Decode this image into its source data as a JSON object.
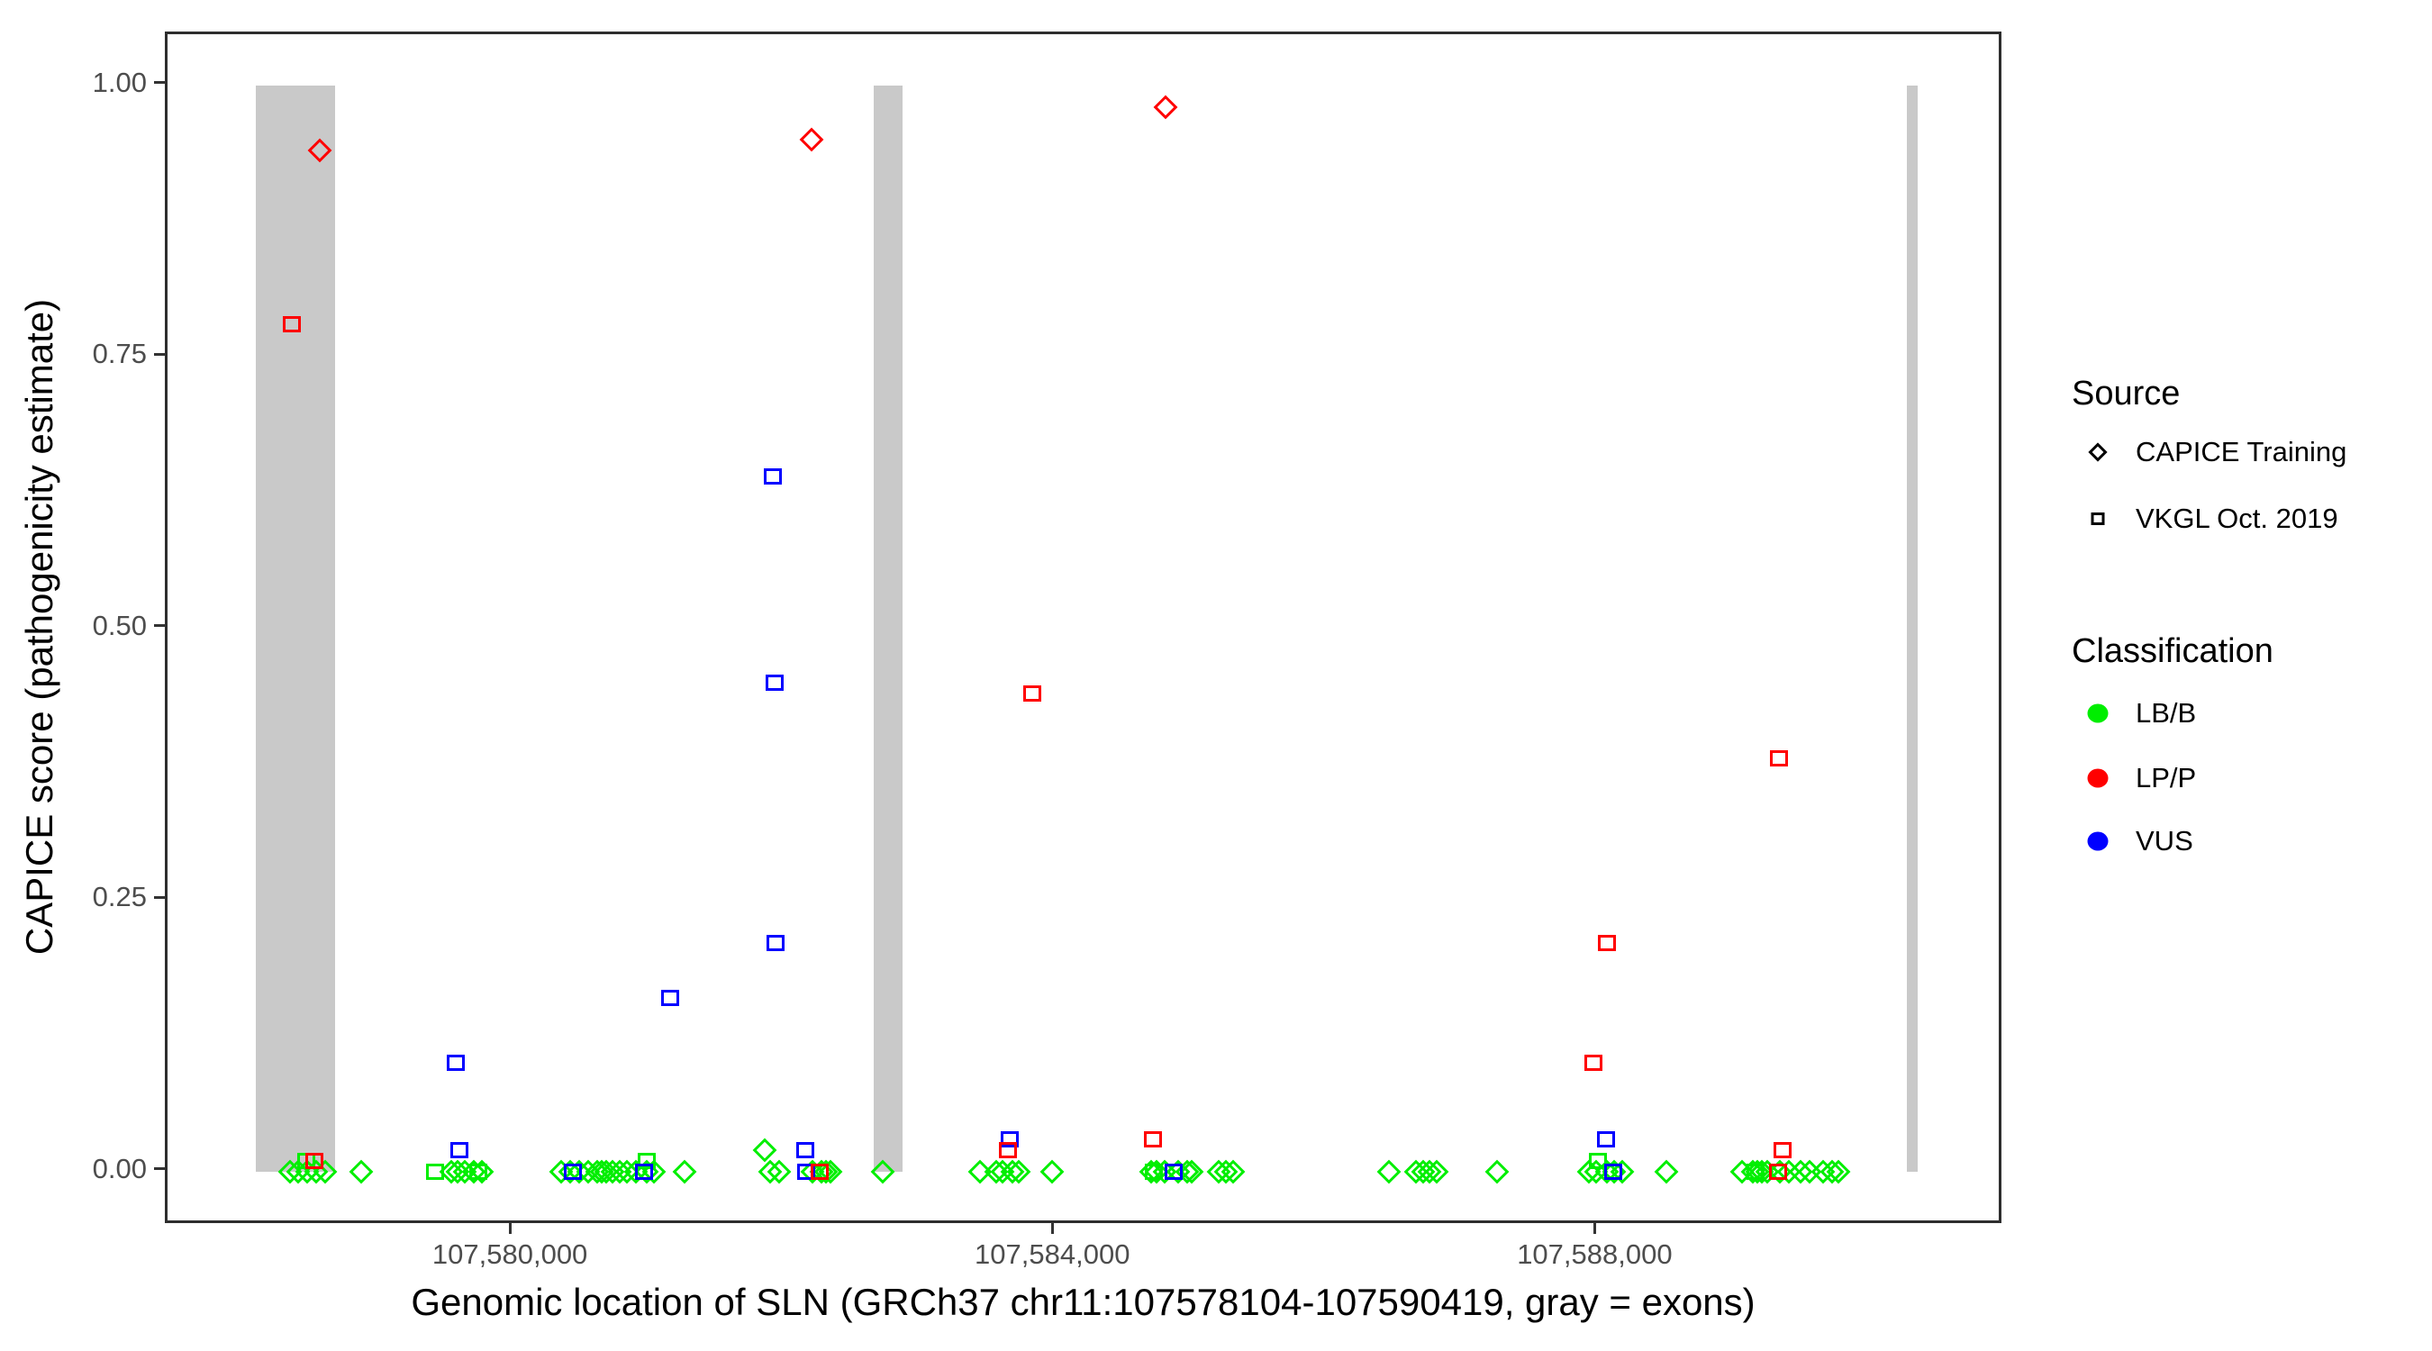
{
  "colors": {
    "lb_b": "#00ee00",
    "lp_p": "#ff0000",
    "vus": "#0000ff",
    "exon_gray": "#c9c9c9",
    "axis_text": "#4d4d4d",
    "panel_border": "#2e2e2e"
  },
  "axes": {
    "x": {
      "title": "Genomic location of SLN (GRCh37 chr11:107578104-107590419, gray = exons)"
    },
    "y": {
      "title": "CAPICE score (pathogenicity estimate)"
    }
  },
  "legend": {
    "source": {
      "title": "Source",
      "items": [
        {
          "label": "CAPICE Training",
          "shape": "diamond"
        },
        {
          "label": "VKGL Oct. 2019",
          "shape": "square"
        }
      ]
    },
    "classification": {
      "title": "Classification",
      "items": [
        {
          "label": "LB/B",
          "color": "#00ee00"
        },
        {
          "label": "LP/P",
          "color": "#ff0000"
        },
        {
          "label": "VUS",
          "color": "#0000ff"
        }
      ]
    }
  },
  "chart_data": {
    "type": "scatter",
    "title": "",
    "xlabel": "Genomic location of SLN (GRCh37 chr11:107578104-107590419, gray = exons)",
    "ylabel": "CAPICE score (pathogenicity estimate)",
    "x_range": [
      107577455,
      107591000
    ],
    "y_range": [
      -0.05,
      1.047
    ],
    "grid": "off",
    "legend_position": "right",
    "x_ticks": [
      {
        "value": 107580000,
        "label": "107,580,000"
      },
      {
        "value": 107584000,
        "label": "107,584,000"
      },
      {
        "value": 107588000,
        "label": "107,588,000"
      }
    ],
    "y_ticks": [
      {
        "value": 0.0,
        "label": "0.00"
      },
      {
        "value": 0.25,
        "label": "0.25"
      },
      {
        "value": 0.5,
        "label": "0.50"
      },
      {
        "value": 0.75,
        "label": "0.75"
      },
      {
        "value": 1.0,
        "label": "1.00"
      }
    ],
    "exons": [
      {
        "start": 107578104,
        "end": 107578690
      },
      {
        "start": 107582660,
        "end": 107582875
      },
      {
        "start": 107590280,
        "end": 107590365
      }
    ],
    "series": [
      {
        "name": "CAPICE Training",
        "classification": "LB/B",
        "shape": "diamond",
        "color": "#00ee00",
        "points": [
          [
            107578358,
            0
          ],
          [
            107578417,
            0
          ],
          [
            107578483,
            0
          ],
          [
            107578550,
            0
          ],
          [
            107578616,
            0
          ],
          [
            107578881,
            0
          ],
          [
            107579550,
            0
          ],
          [
            107579596,
            0
          ],
          [
            107579649,
            0
          ],
          [
            107579715,
            0
          ],
          [
            107579775,
            0
          ],
          [
            107580358,
            0
          ],
          [
            107580424,
            0
          ],
          [
            107580490,
            0
          ],
          [
            107580556,
            0
          ],
          [
            107580623,
            0
          ],
          [
            107580656,
            0
          ],
          [
            107580689,
            0
          ],
          [
            107580735,
            0
          ],
          [
            107580788,
            0
          ],
          [
            107580841,
            0
          ],
          [
            107580907,
            0
          ],
          [
            107580987,
            0
          ],
          [
            107581040,
            0
          ],
          [
            107581265,
            0
          ],
          [
            107581861,
            0.02
          ],
          [
            107581901,
            0
          ],
          [
            107581967,
            0
          ],
          [
            107582212,
            0
          ],
          [
            107582278,
            0
          ],
          [
            107582311,
            0
          ],
          [
            107582344,
            0
          ],
          [
            107582728,
            0
          ],
          [
            107583450,
            0
          ],
          [
            107583569,
            0
          ],
          [
            107583616,
            0
          ],
          [
            107583689,
            0
          ],
          [
            107583735,
            0
          ],
          [
            107583980,
            0
          ],
          [
            107584708,
            0
          ],
          [
            107584748,
            0
          ],
          [
            107584808,
            0
          ],
          [
            107584907,
            0
          ],
          [
            107584973,
            0
          ],
          [
            107585006,
            0
          ],
          [
            107585205,
            0
          ],
          [
            107585258,
            0
          ],
          [
            107585311,
            0
          ],
          [
            107586463,
            0
          ],
          [
            107586662,
            0
          ],
          [
            107586715,
            0
          ],
          [
            107586761,
            0
          ],
          [
            107586814,
            0
          ],
          [
            107587258,
            0
          ],
          [
            107587940,
            0
          ],
          [
            107587993,
            0
          ],
          [
            107588072,
            0
          ],
          [
            107588125,
            0
          ],
          [
            107588185,
            0
          ],
          [
            107588510,
            0
          ],
          [
            107589066,
            0
          ],
          [
            107589145,
            0
          ],
          [
            107589178,
            0
          ],
          [
            107589212,
            0
          ],
          [
            107589251,
            0
          ],
          [
            107589344,
            0
          ],
          [
            107589410,
            0
          ],
          [
            107589496,
            0
          ],
          [
            107589563,
            0
          ],
          [
            107589662,
            0
          ],
          [
            107589728,
            0
          ],
          [
            107589781,
            0
          ]
        ]
      },
      {
        "name": "CAPICE Training",
        "classification": "LP/P",
        "shape": "diamond",
        "color": "#ff0000",
        "points": [
          [
            107578580,
            0.94
          ],
          [
            107582205,
            0.95
          ],
          [
            107584814,
            0.98
          ]
        ]
      },
      {
        "name": "VKGL Oct. 2019",
        "classification": "LB/B",
        "shape": "square",
        "color": "#00ee00",
        "points": [
          [
            107578477,
            0.01
          ],
          [
            107579430,
            0
          ],
          [
            107579748,
            0
          ],
          [
            107580987,
            0.01
          ],
          [
            107584728,
            0
          ],
          [
            107588006,
            0.01
          ],
          [
            107589165,
            0
          ]
        ]
      },
      {
        "name": "VKGL Oct. 2019",
        "classification": "VUS",
        "shape": "square",
        "color": "#0000ff",
        "points": [
          [
            107579583,
            0.1
          ],
          [
            107579609,
            0.02
          ],
          [
            107580444,
            0
          ],
          [
            107580967,
            0
          ],
          [
            107581159,
            0.16
          ],
          [
            107581921,
            0.64
          ],
          [
            107581934,
            0.45
          ],
          [
            107581940,
            0.21
          ],
          [
            107582159,
            0.02
          ],
          [
            107582166,
            0
          ],
          [
            107583669,
            0.03
          ],
          [
            107584874,
            0
          ],
          [
            107588066,
            0.03
          ],
          [
            107588119,
            0
          ]
        ]
      },
      {
        "name": "VKGL Oct. 2019",
        "classification": "LP/P",
        "shape": "square",
        "color": "#ff0000",
        "points": [
          [
            107578370,
            0.78
          ],
          [
            107578536,
            0.01
          ],
          [
            107582265,
            0
          ],
          [
            107583656,
            0.02
          ],
          [
            107583834,
            0.44
          ],
          [
            107584722,
            0.03
          ],
          [
            107587973,
            0.1
          ],
          [
            107588072,
            0.21
          ],
          [
            107589331,
            0
          ],
          [
            107589336,
            0.38
          ],
          [
            107589369,
            0.02
          ]
        ]
      }
    ]
  }
}
